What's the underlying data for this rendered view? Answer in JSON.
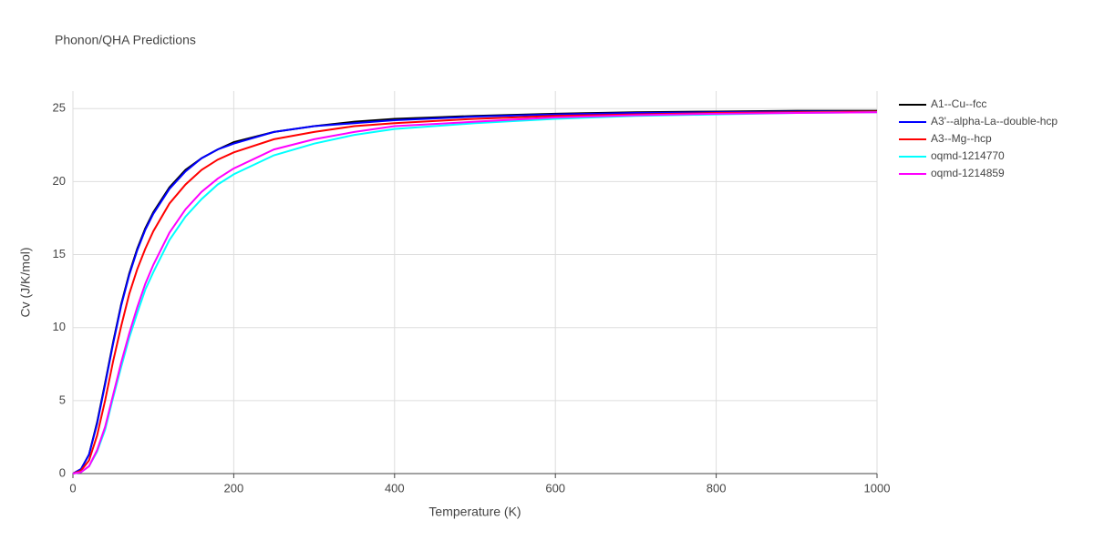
{
  "chart_data": {
    "type": "line",
    "title": "Phonon/QHA Predictions",
    "x_label": "Temperature (K)",
    "y_label": "Cv (J/K/mol)",
    "x": [
      0,
      10,
      20,
      30,
      40,
      50,
      60,
      70,
      80,
      90,
      100,
      120,
      140,
      160,
      180,
      200,
      250,
      300,
      350,
      400,
      500,
      600,
      700,
      800,
      900,
      1000
    ],
    "series": [
      {
        "name": "A1--Cu--fcc",
        "color": "#000000",
        "values": [
          0,
          0.3,
          1.3,
          3.5,
          6.2,
          9.0,
          11.6,
          13.7,
          15.4,
          16.8,
          17.9,
          19.6,
          20.8,
          21.6,
          22.2,
          22.7,
          23.4,
          23.8,
          24.1,
          24.3,
          24.5,
          24.65,
          24.75,
          24.8,
          24.85,
          24.85
        ]
      },
      {
        "name": "A3'--alpha-La--double-hcp",
        "color": "#0000ff",
        "values": [
          0,
          0.3,
          1.3,
          3.4,
          6.1,
          8.9,
          11.5,
          13.6,
          15.3,
          16.7,
          17.8,
          19.5,
          20.7,
          21.6,
          22.2,
          22.6,
          23.4,
          23.8,
          24.0,
          24.2,
          24.45,
          24.6,
          24.7,
          24.75,
          24.8,
          24.8
        ]
      },
      {
        "name": "A3--Mg--hcp",
        "color": "#ff0000",
        "values": [
          0,
          0.2,
          0.9,
          2.6,
          5.0,
          7.7,
          10.1,
          12.3,
          14.0,
          15.4,
          16.6,
          18.5,
          19.8,
          20.8,
          21.5,
          22.0,
          22.9,
          23.4,
          23.8,
          24.0,
          24.3,
          24.5,
          24.6,
          24.7,
          24.75,
          24.8
        ]
      },
      {
        "name": "oqmd-1214770",
        "color": "#00ffff",
        "values": [
          0,
          0.1,
          0.5,
          1.5,
          3.0,
          5.2,
          7.3,
          9.3,
          11.0,
          12.6,
          13.8,
          16.0,
          17.6,
          18.8,
          19.8,
          20.5,
          21.8,
          22.6,
          23.2,
          23.6,
          24.0,
          24.3,
          24.5,
          24.6,
          24.7,
          24.75
        ]
      },
      {
        "name": "oqmd-1214859",
        "color": "#ff00ff",
        "values": [
          0,
          0.1,
          0.5,
          1.6,
          3.2,
          5.4,
          7.6,
          9.6,
          11.4,
          13.0,
          14.3,
          16.5,
          18.1,
          19.3,
          20.2,
          20.9,
          22.2,
          22.9,
          23.4,
          23.8,
          24.1,
          24.4,
          24.55,
          24.65,
          24.7,
          24.75
        ]
      }
    ],
    "xlim": [
      0,
      1000
    ],
    "xticks": [
      0,
      200,
      400,
      600,
      800,
      1000
    ],
    "ylim": [
      0,
      26.2
    ],
    "yticks": [
      0,
      5,
      10,
      15,
      20,
      25
    ],
    "grid": true
  }
}
